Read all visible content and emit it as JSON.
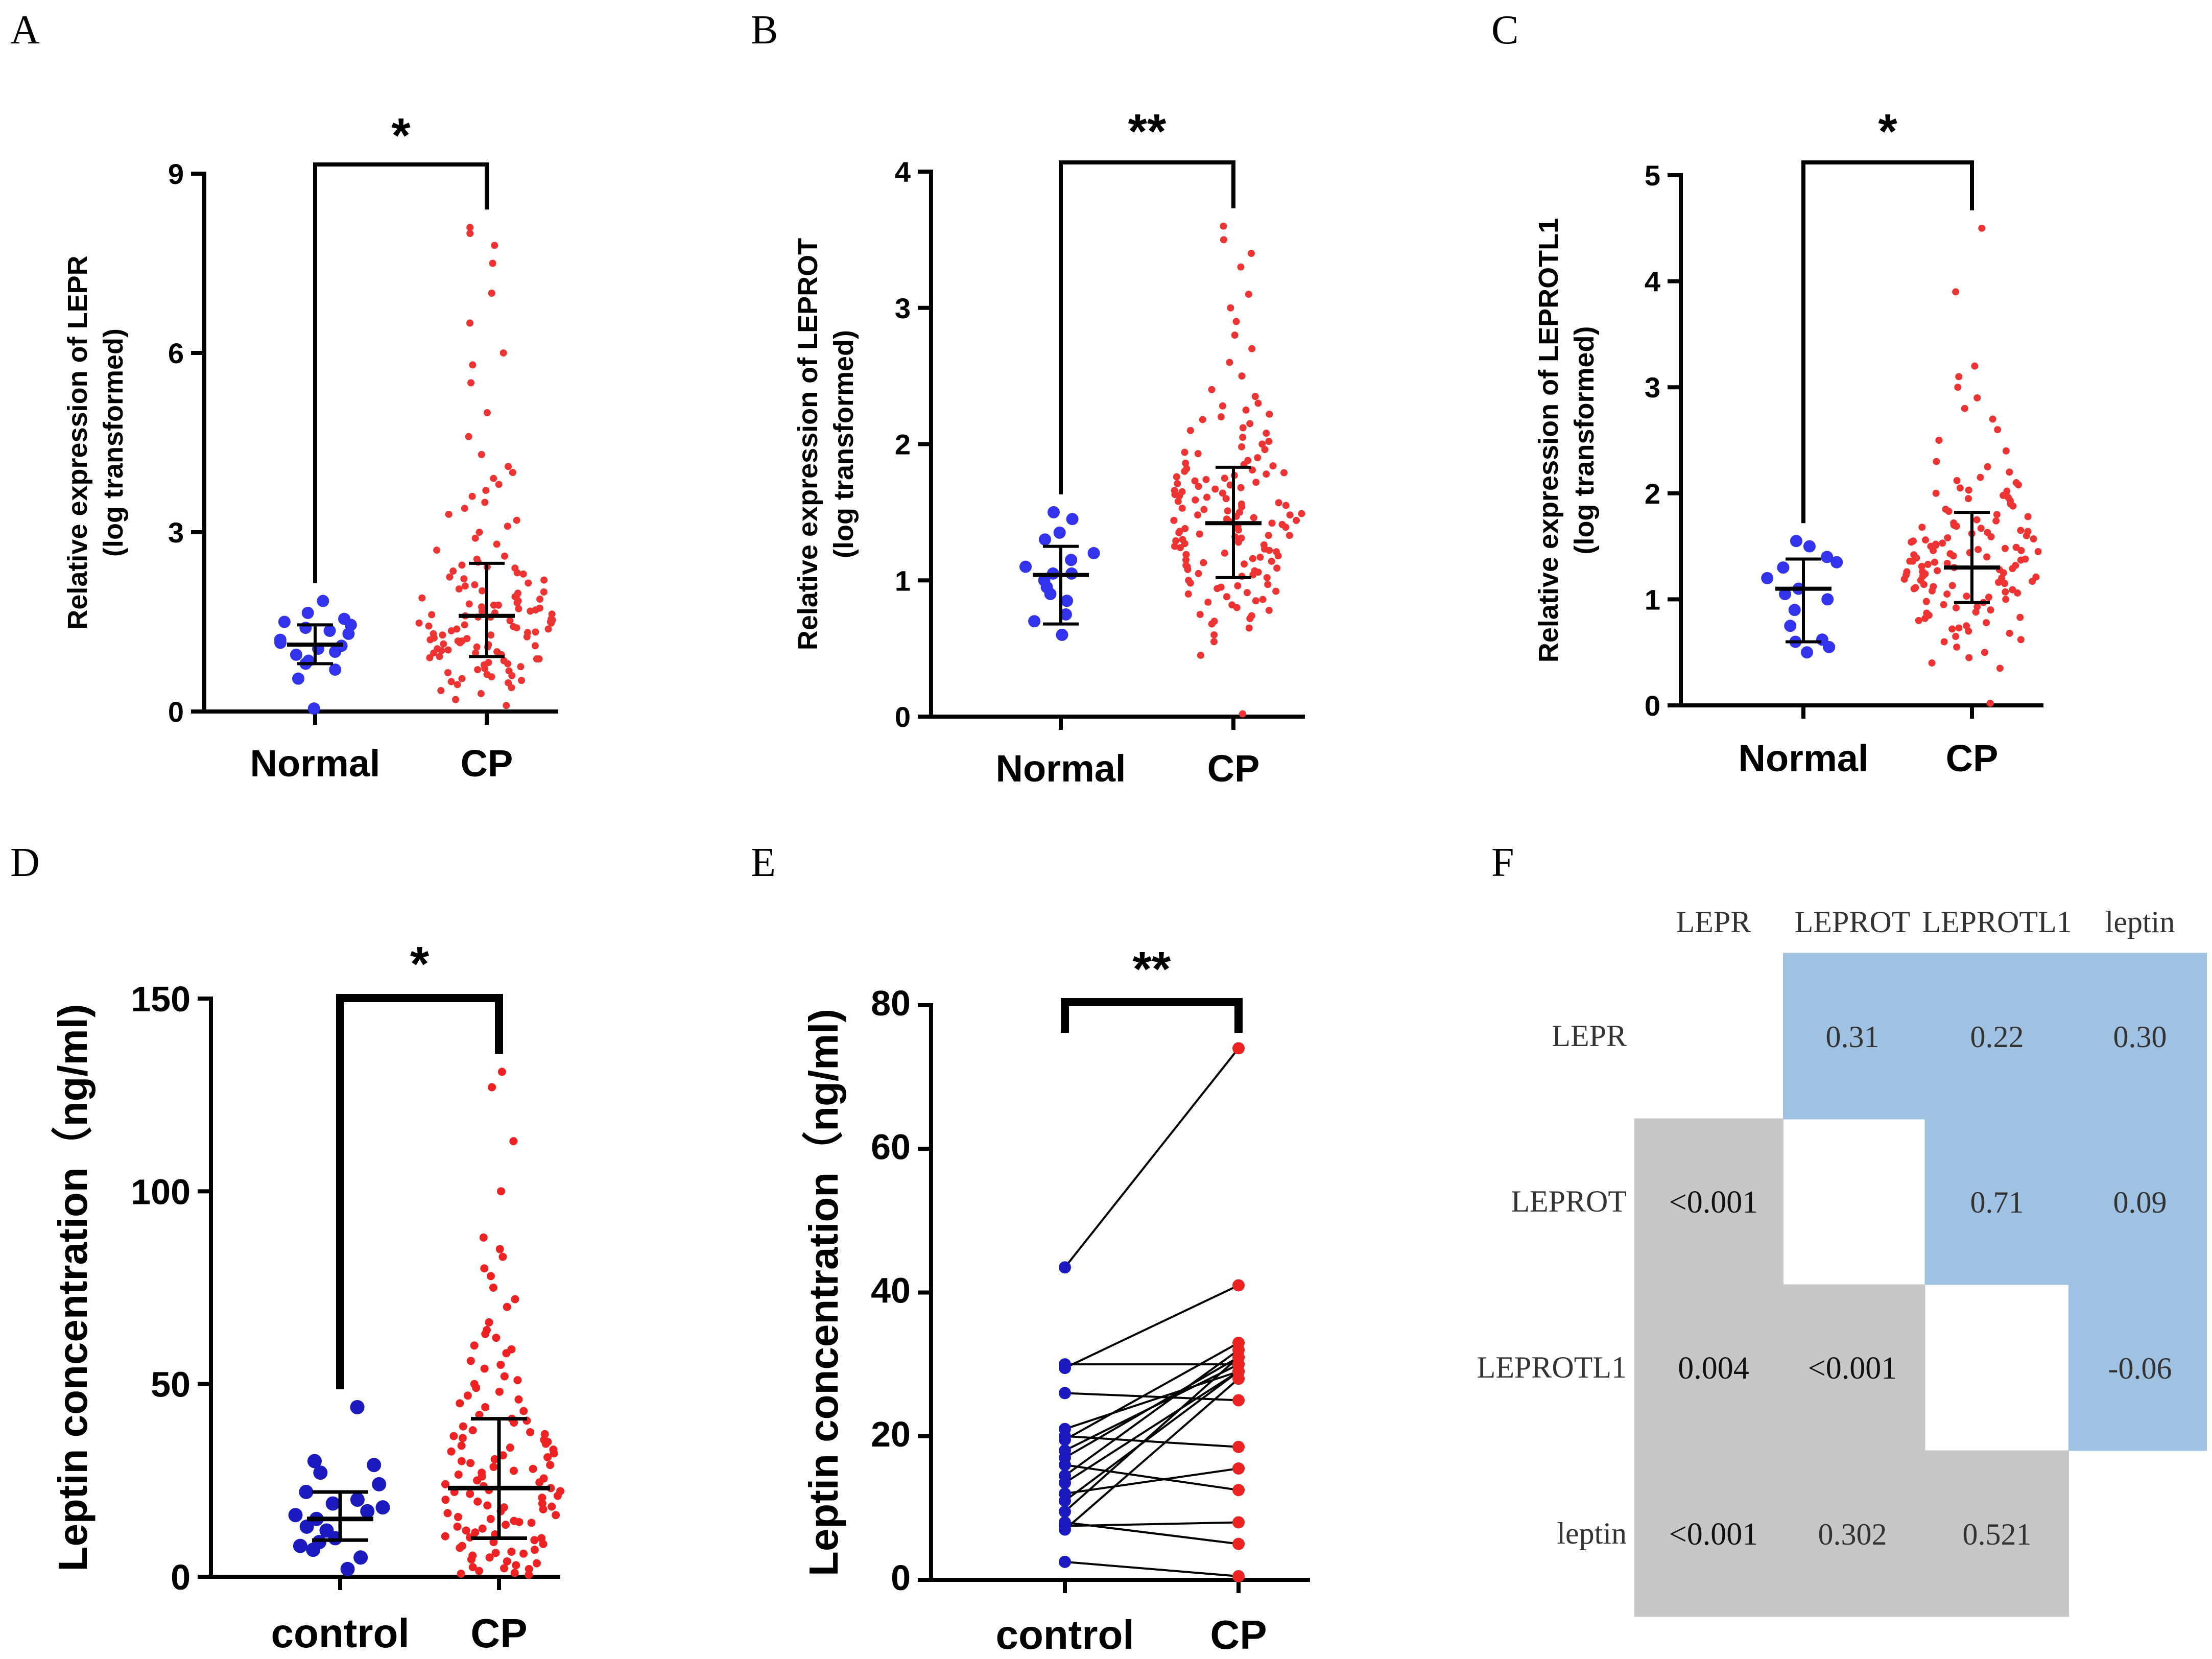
{
  "panel_labels": [
    "A",
    "B",
    "C",
    "D",
    "E",
    "F"
  ],
  "chart_data": [
    {
      "id": "A",
      "type": "scatter",
      "ylabel_line1": "Relative expression of LEPR",
      "ylabel_line2": "(log transformed)",
      "categories": [
        "Normal",
        "CP"
      ],
      "ylim": [
        0,
        9
      ],
      "yticks": [
        0,
        3,
        6,
        9
      ],
      "significance": "*",
      "groups": [
        {
          "name": "Normal",
          "color": "#3333ee",
          "mean": 1.12,
          "sd_low": 0.8,
          "sd_high": 1.45,
          "points": [
            0.05,
            0.55,
            0.7,
            0.8,
            0.85,
            0.95,
            1.0,
            1.05,
            1.1,
            1.15,
            1.2,
            1.3,
            1.35,
            1.4,
            1.45,
            1.5,
            1.55,
            1.65,
            1.85
          ]
        },
        {
          "name": "CP",
          "color": "#ee3333",
          "mean": 1.6,
          "sd_low": 0.92,
          "sd_high": 2.48,
          "points": [
            0.1,
            0.2,
            0.3,
            0.35,
            0.4,
            0.45,
            0.5,
            0.55,
            0.6,
            0.62,
            0.65,
            0.7,
            0.72,
            0.75,
            0.8,
            0.82,
            0.85,
            0.88,
            0.9,
            0.92,
            0.95,
            0.98,
            1.0,
            1.02,
            1.05,
            1.08,
            1.1,
            1.12,
            1.15,
            1.18,
            1.2,
            1.22,
            1.25,
            1.28,
            1.3,
            1.32,
            1.35,
            1.38,
            1.4,
            1.42,
            1.45,
            1.48,
            1.5,
            1.52,
            1.55,
            1.58,
            1.6,
            1.62,
            1.65,
            1.68,
            1.7,
            1.72,
            1.75,
            1.78,
            1.8,
            1.82,
            1.85,
            1.88,
            1.9,
            1.92,
            1.95,
            1.98,
            2.0,
            2.05,
            2.1,
            2.15,
            2.2,
            2.25,
            2.3,
            2.35,
            2.4,
            2.45,
            2.5,
            2.55,
            2.6,
            2.7,
            2.8,
            2.9,
            3.0,
            3.1,
            3.2,
            3.3,
            3.4,
            3.5,
            3.6,
            3.7,
            3.8,
            3.9,
            4.0,
            4.1,
            4.3,
            4.6,
            5.0,
            5.5,
            5.8,
            6.0,
            6.5,
            7.0,
            7.5,
            7.8,
            8.0,
            8.1,
            0.58,
            0.68,
            0.78,
            0.88,
            0.98,
            1.08,
            1.18,
            1.28,
            1.38,
            1.48,
            1.58,
            1.68,
            1.78,
            2.02,
            2.12,
            2.22,
            2.32,
            2.42,
            0.48,
            0.52,
            1.03,
            1.13,
            1.23,
            1.33,
            1.43,
            1.53,
            1.63,
            1.73
          ]
        }
      ]
    },
    {
      "id": "B",
      "type": "scatter",
      "ylabel_line1": "Relative expression of LEPROT",
      "ylabel_line2": "(log transformed)",
      "categories": [
        "Normal",
        "CP"
      ],
      "ylim": [
        0,
        4
      ],
      "yticks": [
        0,
        1,
        2,
        3,
        4
      ],
      "significance": "**",
      "groups": [
        {
          "name": "Normal",
          "color": "#3333ee",
          "mean": 1.04,
          "sd_low": 0.68,
          "sd_high": 1.25,
          "points": [
            0.6,
            0.7,
            0.75,
            0.85,
            0.9,
            0.95,
            1.0,
            1.05,
            1.05,
            1.1,
            1.15,
            1.2,
            1.3,
            1.35,
            1.45,
            1.5
          ]
        },
        {
          "name": "CP",
          "color": "#ee3333",
          "mean": 1.42,
          "sd_low": 1.02,
          "sd_high": 1.83,
          "points": [
            0.02,
            0.45,
            0.55,
            0.6,
            0.65,
            0.7,
            0.72,
            0.75,
            0.8,
            0.82,
            0.85,
            0.88,
            0.9,
            0.92,
            0.95,
            0.97,
            1.0,
            1.02,
            1.05,
            1.07,
            1.1,
            1.12,
            1.15,
            1.17,
            1.2,
            1.22,
            1.25,
            1.27,
            1.3,
            1.32,
            1.35,
            1.37,
            1.4,
            1.42,
            1.45,
            1.47,
            1.5,
            1.52,
            1.55,
            1.57,
            1.6,
            1.62,
            1.65,
            1.67,
            1.7,
            1.72,
            1.75,
            1.77,
            1.8,
            1.82,
            1.85,
            1.88,
            1.9,
            1.93,
            1.96,
            2.0,
            2.05,
            2.1,
            2.15,
            2.2,
            2.25,
            2.3,
            2.35,
            2.4,
            2.5,
            2.6,
            2.7,
            2.8,
            2.9,
            3.0,
            3.1,
            3.3,
            3.4,
            3.5,
            3.6,
            1.08,
            1.18,
            1.28,
            1.38,
            1.48,
            1.58,
            1.68,
            1.78,
            1.13,
            1.23,
            1.33,
            1.43,
            1.53,
            1.63,
            1.73,
            0.98,
            1.03,
            1.33,
            1.36,
            1.44,
            1.46,
            1.54,
            1.56,
            1.34,
            1.39,
            1.41,
            1.49,
            1.51,
            1.59,
            1.61,
            1.26,
            1.29,
            1.31,
            1.19,
            1.21,
            1.69,
            1.71,
            1.79,
            1.81,
            0.78,
            0.86,
            0.94,
            1.11,
            1.14,
            1.16,
            1.24,
            1.64,
            1.66,
            1.74,
            1.76,
            1.84,
            1.86,
            1.94,
            1.98,
            2.02,
            2.08,
            2.12,
            2.18,
            2.22,
            2.28,
            0.68,
            0.74,
            0.84,
            0.91,
            0.96,
            1.04,
            1.06,
            1.09,
            1.44,
            1.48
          ]
        }
      ]
    },
    {
      "id": "C",
      "type": "scatter",
      "ylabel_line1": "Relative expression of LEPROTL1",
      "ylabel_line2": "(log transformed)",
      "categories": [
        "Normal",
        "CP"
      ],
      "ylim": [
        0,
        5
      ],
      "yticks": [
        0,
        1,
        2,
        3,
        4,
        5
      ],
      "significance": "*",
      "groups": [
        {
          "name": "Normal",
          "color": "#3333ee",
          "mean": 1.1,
          "sd_low": 0.6,
          "sd_high": 1.38,
          "points": [
            0.5,
            0.55,
            0.6,
            0.62,
            0.75,
            0.9,
            1.0,
            1.05,
            1.1,
            1.2,
            1.3,
            1.35,
            1.4,
            1.5,
            1.55
          ]
        },
        {
          "name": "CP",
          "color": "#ee3333",
          "mean": 1.3,
          "sd_low": 0.97,
          "sd_high": 1.82,
          "points": [
            0.02,
            0.35,
            0.4,
            0.45,
            0.5,
            0.55,
            0.6,
            0.62,
            0.65,
            0.7,
            0.72,
            0.75,
            0.78,
            0.8,
            0.82,
            0.85,
            0.88,
            0.9,
            0.92,
            0.95,
            0.97,
            1.0,
            1.02,
            1.05,
            1.07,
            1.1,
            1.12,
            1.15,
            1.17,
            1.2,
            1.22,
            1.25,
            1.27,
            1.3,
            1.32,
            1.35,
            1.37,
            1.4,
            1.42,
            1.45,
            1.47,
            1.5,
            1.52,
            1.55,
            1.57,
            1.6,
            1.62,
            1.65,
            1.67,
            1.7,
            1.72,
            1.75,
            1.78,
            1.8,
            1.85,
            1.9,
            1.95,
            2.0,
            2.05,
            2.1,
            2.15,
            2.2,
            2.25,
            2.3,
            2.4,
            2.5,
            2.6,
            2.7,
            2.8,
            2.9,
            3.0,
            3.1,
            3.2,
            3.9,
            4.5,
            1.08,
            1.18,
            1.28,
            1.38,
            1.48,
            1.58,
            1.68,
            1.13,
            1.23,
            1.33,
            1.43,
            1.53,
            1.63,
            0.98,
            1.03,
            1.09,
            1.14,
            1.19,
            1.24,
            1.29,
            1.34,
            1.39,
            1.44,
            1.49,
            1.54,
            1.59,
            1.64,
            1.69,
            1.74,
            0.87,
            0.93,
            1.11,
            1.16,
            1.21,
            1.26,
            1.31,
            1.36,
            1.41,
            1.46,
            1.51,
            1.56,
            1.83,
            1.88,
            1.93,
            1.98,
            2.03,
            2.08,
            0.68,
            0.73,
            0.83,
            1.06,
            1.26,
            1.36,
            1.46,
            1.96,
            2.02,
            2.12
          ]
        }
      ]
    },
    {
      "id": "D",
      "type": "scatter",
      "ylabel": "Leptin concentration（ng/ml)",
      "categories": [
        "control",
        "CP"
      ],
      "ylim": [
        0,
        150
      ],
      "yticks": [
        0,
        50,
        100,
        150
      ],
      "significance": "*",
      "groups": [
        {
          "name": "control",
          "color": "#1a1abf",
          "mean": 15,
          "sd_low": 9.5,
          "sd_high": 22,
          "points": [
            2,
            5,
            7,
            8,
            9,
            10,
            12,
            13,
            15,
            16,
            17,
            18,
            19,
            20,
            22,
            24,
            27,
            29,
            30,
            44
          ]
        },
        {
          "name": "CP",
          "color": "#ee2222",
          "mean": 23,
          "sd_low": 10,
          "sd_high": 41,
          "points": [
            0.5,
            1,
            2,
            3,
            4,
            5,
            6,
            7,
            8,
            9,
            10,
            11,
            12,
            13,
            14,
            15,
            16,
            17,
            18,
            19,
            20,
            21,
            22,
            23,
            24,
            25,
            26,
            27,
            28,
            29,
            30,
            31,
            32,
            33,
            34,
            35,
            36,
            37,
            38,
            39,
            40,
            42,
            44,
            46,
            48,
            50,
            52,
            54,
            56,
            58,
            60,
            62,
            64,
            66,
            70,
            72,
            75,
            78,
            80,
            83,
            85,
            88,
            100,
            113,
            127,
            131,
            3.5,
            5.5,
            7.5,
            9.5,
            11.5,
            13.5,
            15.5,
            17.5,
            19.5,
            21.5,
            23.5,
            25.5,
            27.5,
            29.5,
            31.5,
            33.5,
            35.5,
            37.5,
            41,
            43,
            45,
            47,
            49,
            51,
            55,
            59,
            63,
            2.5,
            6.5,
            10.5,
            14.5,
            18.5,
            22.5,
            26.5,
            30.5,
            34.5,
            1.5,
            4.5,
            8.5,
            12.5,
            16.5,
            20.5,
            24.5,
            28.5,
            32.5,
            36.5,
            40.5,
            0.8,
            2.2,
            6.2,
            10.2,
            14.2,
            18.2,
            22.2
          ]
        }
      ]
    },
    {
      "id": "E",
      "type": "line",
      "ylabel": "Leptin concentration（ng/ml)",
      "categories": [
        "control",
        "CP"
      ],
      "ylim": [
        0,
        80
      ],
      "yticks": [
        0,
        20,
        40,
        60,
        80
      ],
      "significance": "**",
      "control_color": "#1a1abf",
      "cp_color": "#ee2222",
      "pairs": [
        [
          43.5,
          74
        ],
        [
          30,
          30
        ],
        [
          29.5,
          41
        ],
        [
          26,
          25
        ],
        [
          21,
          29
        ],
        [
          20,
          18.5
        ],
        [
          19.5,
          33
        ],
        [
          18,
          30
        ],
        [
          17,
          31
        ],
        [
          16,
          12.5
        ],
        [
          14.5,
          32
        ],
        [
          13.5,
          29
        ],
        [
          12,
          15.5
        ],
        [
          11,
          29
        ],
        [
          9.5,
          31
        ],
        [
          8,
          5
        ],
        [
          7.5,
          8
        ],
        [
          7,
          28
        ],
        [
          2.5,
          0.5
        ]
      ]
    },
    {
      "id": "F",
      "type": "table",
      "col_headers": [
        "LEPR",
        "LEPROT",
        "LEPROTL1",
        "leptin"
      ],
      "row_headers": [
        "LEPR",
        "LEPROT",
        "LEPROTL1",
        "leptin"
      ],
      "upper_color": "#9fc1e2",
      "lower_color": "#c7c7c7",
      "cells": [
        [
          "",
          "0.31",
          "0.22",
          "0.30"
        ],
        [
          "<0.001",
          "",
          "0.71",
          "0.09"
        ],
        [
          "0.004",
          "<0.001",
          "",
          "-0.06"
        ],
        [
          "<0.001",
          "0.302",
          "0.521",
          ""
        ]
      ]
    }
  ]
}
